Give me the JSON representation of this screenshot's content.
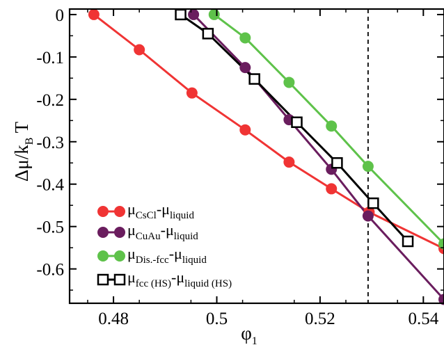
{
  "chart_data": {
    "type": "line",
    "xlabel": "φ",
    "xlabel_sub": "1",
    "ylabel": "Δμ/k",
    "ylabel_sub": "B",
    "ylabel_tail": " T",
    "xlim": [
      0.4715,
      0.544
    ],
    "ylim": [
      -0.681,
      0.013
    ],
    "xticks": [
      0.48,
      0.5,
      0.52,
      0.54
    ],
    "xtick_labels": [
      "0.48",
      "0.5",
      "0.52",
      "0.54"
    ],
    "yticks": [
      0,
      -0.1,
      -0.2,
      -0.3,
      -0.4,
      -0.5,
      -0.6
    ],
    "ytick_labels": [
      "0",
      "-0.1",
      "-0.2",
      "-0.3",
      "-0.4",
      "-0.5",
      "-0.6"
    ],
    "reference_line": {
      "x": 0.5293,
      "style": "dashed"
    },
    "grid": false,
    "legend_position": "bottom-left",
    "series": [
      {
        "label_main": "μ",
        "label_sub": "CsCl",
        "label_mid": "-μ",
        "label_sub2": "liquid",
        "color": "#f03434",
        "marker": "circle",
        "x": [
          0.4762,
          0.485,
          0.4952,
          0.5055,
          0.514,
          0.5222,
          0.5295,
          0.544
        ],
        "y": [
          0.0,
          -0.083,
          -0.185,
          -0.272,
          -0.348,
          -0.411,
          -0.466,
          -0.552
        ]
      },
      {
        "label_main": "μ",
        "label_sub": "CuAu",
        "label_mid": "-μ",
        "label_sub2": "liquid",
        "color": "#6a1d5e",
        "marker": "circle",
        "x": [
          0.4955,
          0.5055,
          0.514,
          0.5222,
          0.5293,
          0.544
        ],
        "y": [
          0.0,
          -0.125,
          -0.248,
          -0.365,
          -0.475,
          -0.672
        ]
      },
      {
        "label_main": "μ",
        "label_sub": "Dis.-fcc",
        "label_mid": "-μ",
        "label_sub2": "liquid",
        "color": "#5ec24a",
        "marker": "circle",
        "x": [
          0.4995,
          0.5055,
          0.514,
          0.5222,
          0.5293,
          0.544
        ],
        "y": [
          0.0,
          -0.055,
          -0.16,
          -0.263,
          -0.358,
          -0.541
        ]
      },
      {
        "label_main": "μ",
        "label_sub": "fcc (HS)",
        "label_mid": "-μ",
        "label_sub2": "liquid (HS)",
        "color": "#000000",
        "marker": "square",
        "x": [
          0.493,
          0.4983,
          0.5073,
          0.5155,
          0.5233,
          0.5303,
          0.537
        ],
        "y": [
          0.0,
          -0.045,
          -0.152,
          -0.254,
          -0.35,
          -0.445,
          -0.535
        ]
      }
    ]
  }
}
